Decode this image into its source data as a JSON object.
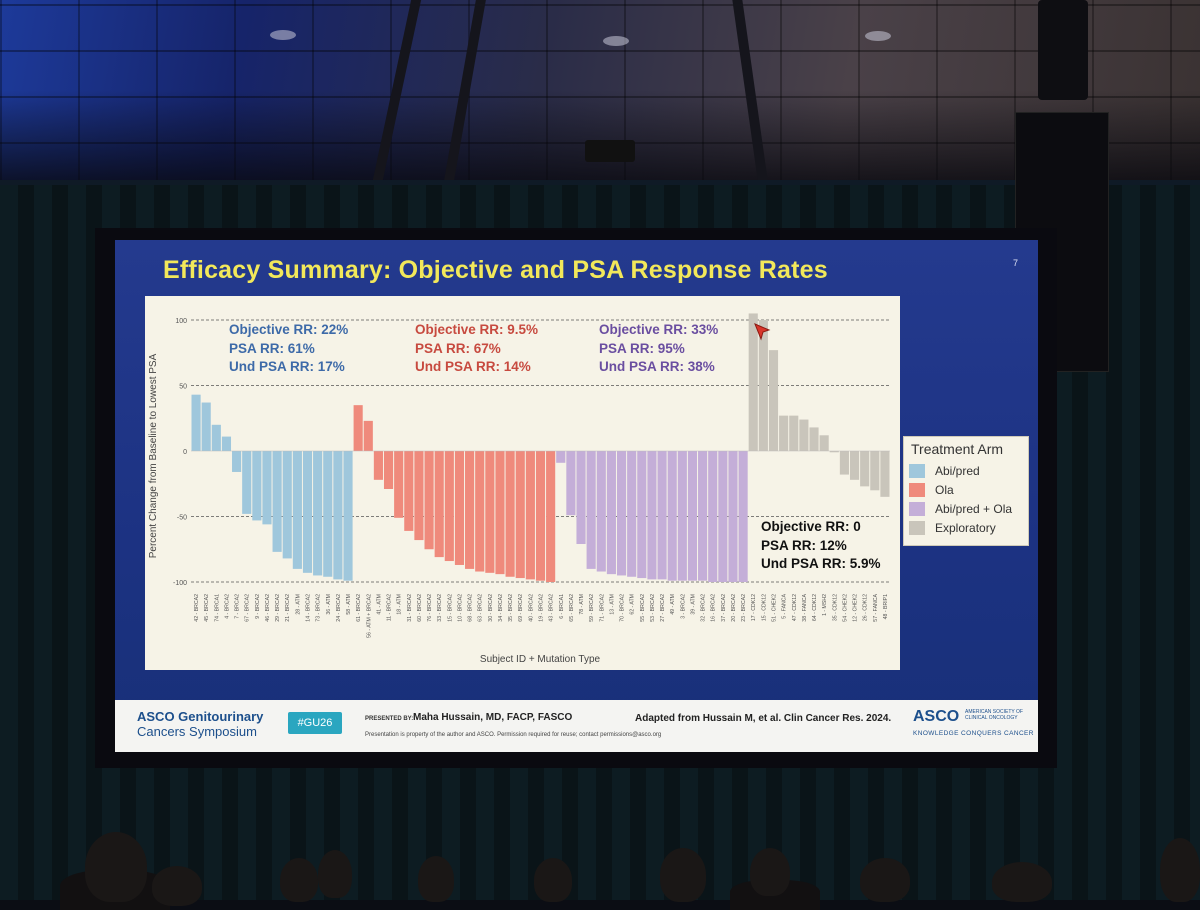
{
  "slide": {
    "title": "Efficacy Summary: Objective and PSA Response Rates",
    "slide_number": "7"
  },
  "response_rates": {
    "abi_pred": {
      "objective": "Objective RR: 22%",
      "psa": "PSA RR: 61%",
      "und_psa": "Und PSA RR: 17%"
    },
    "ola": {
      "objective": "Objective RR: 9.5%",
      "psa": "PSA RR: 67%",
      "und_psa": "Und PSA RR: 14%"
    },
    "abi_pred_ola": {
      "objective": "Objective RR: 33%",
      "psa": "PSA RR: 95%",
      "und_psa": "Und  PSA RR: 38%"
    },
    "exploratory": {
      "objective": "Objective RR: 0",
      "psa": "PSA RR: 12%",
      "und_psa": "Und PSA RR: 5.9%"
    }
  },
  "legend": {
    "title": "Treatment Arm",
    "items": [
      {
        "label": "Abi/pred",
        "color": "#9fc7dc"
      },
      {
        "label": "Ola",
        "color": "#ef8a7c"
      },
      {
        "label": "Abi/pred + Ola",
        "color": "#c4aed8"
      },
      {
        "label": "Exploratory",
        "color": "#c9c5bb"
      }
    ]
  },
  "chart_data": {
    "type": "bar",
    "subtype": "waterfall",
    "xlabel": "Subject ID + Mutation Type",
    "ylabel": "Percent Change from Baseline to Lowest PSA",
    "ylim": [
      -100,
      100
    ],
    "yticks": [
      -100,
      -50,
      0,
      50,
      100
    ],
    "grid": "dashed horizontal at ±50, ±100",
    "series": [
      {
        "name": "Abi/pred",
        "color": "#9fc7dc",
        "categories": [
          "42 - BRCA2",
          "45 - BRCA2",
          "74 - BRCA1",
          "4 - BRCA2",
          "7 - BRCA2",
          "67 - BRCA2",
          "9 - BRCA2",
          "46 - BRCA2",
          "29 - BRCA2",
          "21 - BRCA2",
          "28 - ATM",
          "14 - BRCA2",
          "73 - BRCA2",
          "36 - ATM",
          "24 - BRCA2",
          "58 - ATM"
        ],
        "values": [
          43,
          37,
          20,
          11,
          -16,
          -48,
          -53,
          -56,
          -77,
          -82,
          -90,
          -93,
          -95,
          -96,
          -98,
          -99
        ]
      },
      {
        "name": "Ola",
        "color": "#ef8a7c",
        "categories": [
          "61 - BRCA2",
          "56 - ATM + BRCA2",
          "41 - ATM",
          "11 - BRCA2",
          "18 - ATM",
          "31 - BRCA2",
          "60 - BRCA2",
          "76 - BRCA2",
          "33 - BRCA2",
          "15 - BRCA2",
          "10 - BRCA2",
          "68 - BRCA2",
          "63 - BRCA2",
          "30 - BRCA2",
          "34 - BRCA2",
          "35 - BRCA2",
          "69 - BRCA2",
          "40 - BRCA2",
          "19 - BRCA2",
          "43 - BRCA2"
        ],
        "values": [
          35,
          23,
          -22,
          -29,
          -51,
          -61,
          -68,
          -75,
          -81,
          -84,
          -87,
          -90,
          -92,
          -93,
          -94,
          -96,
          -97,
          -98,
          -99,
          -100
        ]
      },
      {
        "name": "Abi/pred + Ola",
        "color": "#c4aed8",
        "categories": [
          "6 - BRCA1",
          "65 - BRCA2",
          "78 - ATM",
          "59 - BRCA2",
          "71 - BRCA2",
          "13 - ATM",
          "70 - BRCA2",
          "62 - ATM",
          "55 - BRCA2",
          "53 - BRCA2",
          "27 - BRCA2",
          "49 - ATM",
          "3 - BRCA2",
          "39 - ATM",
          "32 - BRCA2",
          "16 - BRCA2",
          "37 - BRCA2",
          "20 - BRCA2",
          "23 - BRCA2"
        ],
        "values": [
          -9,
          -49,
          -71,
          -90,
          -92,
          -94,
          -95,
          -96,
          -97,
          -98,
          -98,
          -99,
          -99,
          -99,
          -99,
          -100,
          -100,
          -100,
          -100
        ]
      },
      {
        "name": "Exploratory",
        "color": "#c9c5bb",
        "categories": [
          "17 - CDK12",
          "15 - CDK12",
          "51 - CHEK2",
          "5 - FANCA",
          "47 - CDK12",
          "38 - FANCA",
          "64 - CDK12",
          "1 - MSH2",
          "35 - CDK12",
          "54 - CHEK2",
          "12 - CHEK2",
          "26 - CDK12",
          "57 - FANCA",
          "48 - BRIP1"
        ],
        "values": [
          105,
          100,
          77,
          27,
          27,
          24,
          18,
          12,
          -1,
          -18,
          -22,
          -27,
          -30,
          -35
        ]
      }
    ]
  },
  "footer": {
    "logo_line1": "ASCO Genitourinary",
    "logo_line2": "Cancers Symposium",
    "hashtag": "#GU26",
    "presented_by_label": "PRESENTED BY:",
    "presenter": "Maha Hussain, MD, FACP, FASCO",
    "notice": "Presentation is property of the author and ASCO. Permission required for reuse; contact permissions@asco.org",
    "adapted": "Adapted from Hussain M, et al. Clin Cancer Res. 2024.",
    "asco": "ASCO",
    "asco_sub1": "AMERICAN SOCIETY OF",
    "asco_sub2": "CLINICAL ONCOLOGY",
    "asco_tagline": "KNOWLEDGE CONQUERS CANCER"
  }
}
